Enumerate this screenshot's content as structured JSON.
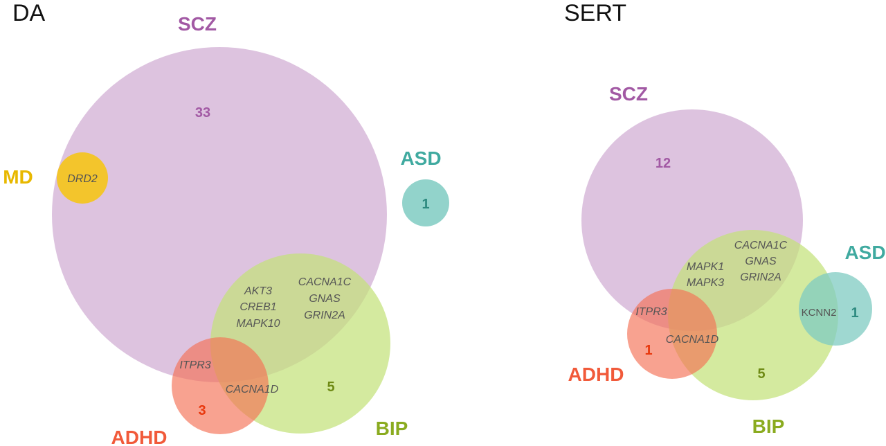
{
  "colors": {
    "scz": "#a259a4",
    "scz_fill": "#d5b4d7",
    "md": "#e8b800",
    "md_fill": "#f5c518",
    "asd": "#40aaa0",
    "asd_fill": "#7fcbc2",
    "adhd": "#f15a3a",
    "adhd_fill": "#f47054",
    "bip": "#8aab1f",
    "bip_fill": "#c4e27a",
    "count_asd": "#2e8a80",
    "count_adhd": "#e8380d",
    "count_bip": "#6e8a14"
  },
  "da": {
    "title": "DA",
    "labels": {
      "scz": "SCZ",
      "md": "MD",
      "asd": "ASD",
      "adhd": "ADHD",
      "bip": "BIP"
    },
    "counts": {
      "scz": "33",
      "asd": "1",
      "adhd": "3",
      "bip": "5"
    },
    "genes": {
      "md": "DRD2",
      "scz_bip_1": "AKT3",
      "scz_bip_2": "CREB1",
      "scz_bip_3": "MAPK10",
      "all_1": "CACNA1C",
      "all_2": "GNAS",
      "all_3": "GRIN2A",
      "scz_adhd": "ITPR3",
      "adhd_bip": "CACNA1D"
    }
  },
  "sert": {
    "title": "SERT",
    "labels": {
      "scz": "SCZ",
      "asd": "ASD",
      "adhd": "ADHD",
      "bip": "BIP"
    },
    "counts": {
      "scz": "12",
      "asd": "1",
      "adhd": "1",
      "bip": "5"
    },
    "genes": {
      "all_1": "CACNA1C",
      "all_2": "GNAS",
      "all_3": "GRIN2A",
      "scz_bip_1": "MAPK1",
      "scz_bip_2": "MAPK3",
      "scz_adhd": "ITPR3",
      "adhd_bip": "CACNA1D",
      "asd_bip": "KCNN2"
    }
  }
}
